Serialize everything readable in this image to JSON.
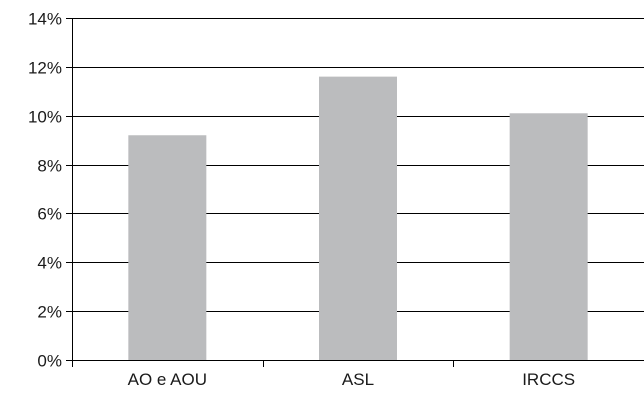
{
  "chart_data": {
    "type": "bar",
    "title": "",
    "xlabel": "",
    "ylabel": "",
    "categories": [
      "AO e AOU",
      "ASL",
      "IRCCS"
    ],
    "values": [
      9.2,
      11.6,
      10.1
    ],
    "ylim": [
      0,
      14
    ],
    "y_ticks": [
      0,
      2,
      4,
      6,
      8,
      10,
      12,
      14
    ],
    "y_tick_labels": [
      "0%",
      "2%",
      "4%",
      "6%",
      "8%",
      "10%",
      "12%",
      "14%"
    ],
    "grid": true,
    "legend": "none",
    "colors": {
      "bar": "#bbbcbe",
      "axis": "#000000",
      "grid": "#000000",
      "text": "#1a1a1a"
    }
  }
}
